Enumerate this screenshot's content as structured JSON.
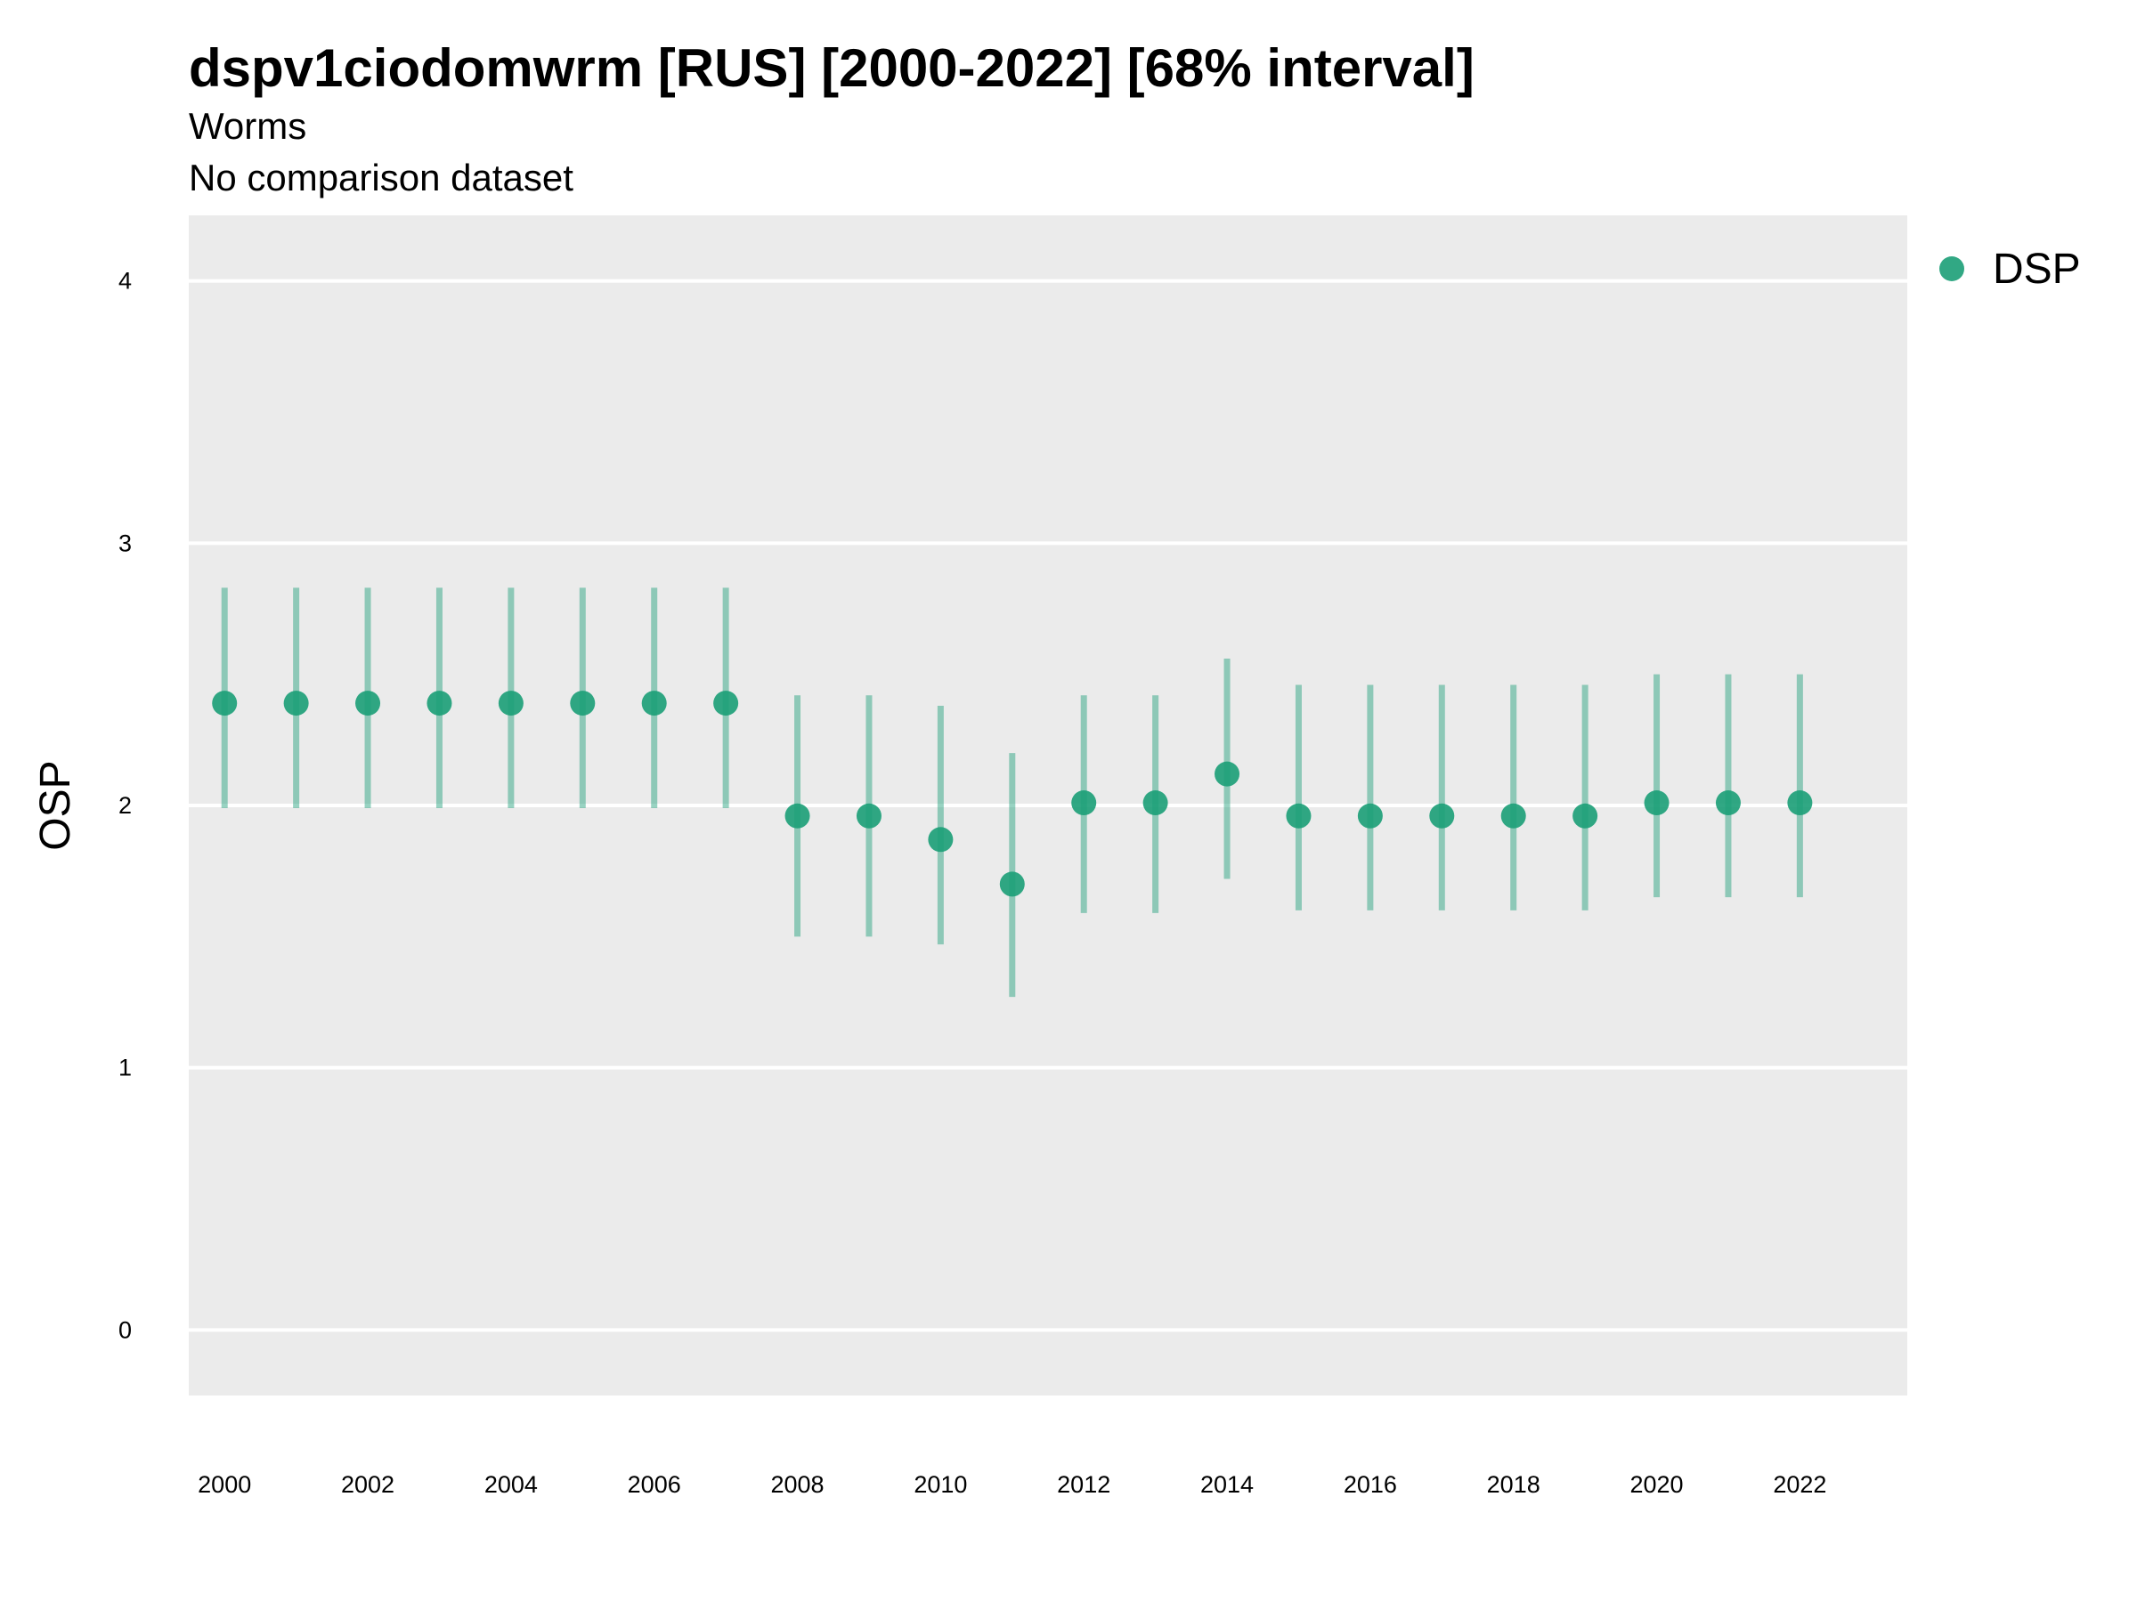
{
  "chart_data": {
    "type": "scatter",
    "title": "dspv1ciodomwrm [RUS] [2000-2022] [68% interval]",
    "subtitle": "Worms",
    "subtitle2": "No comparison dataset",
    "xlabel": "",
    "ylabel": "OSP",
    "ylim": [
      -0.25,
      4.25
    ],
    "xlim": [
      1999.5,
      2023.5
    ],
    "x_ticks": [
      "2000",
      "2002",
      "2004",
      "2006",
      "2008",
      "2010",
      "2012",
      "2014",
      "2016",
      "2018",
      "2020",
      "2022"
    ],
    "y_ticks": [
      "0",
      "1",
      "2",
      "3",
      "4"
    ],
    "grid": true,
    "legend_position": "right",
    "series": [
      {
        "name": "DSP",
        "color": "#1b9e77",
        "x": [
          2000,
          2001,
          2002,
          2003,
          2004,
          2005,
          2006,
          2007,
          2008,
          2009,
          2010,
          2011,
          2012,
          2013,
          2014,
          2015,
          2016,
          2017,
          2018,
          2019,
          2020,
          2021,
          2022
        ],
        "y": [
          2.39,
          2.39,
          2.39,
          2.39,
          2.39,
          2.39,
          2.39,
          2.39,
          1.96,
          1.96,
          1.87,
          1.7,
          2.01,
          2.01,
          2.12,
          1.96,
          1.96,
          1.96,
          1.96,
          1.96,
          2.01,
          2.01,
          2.01
        ],
        "lower": [
          1.99,
          1.99,
          1.99,
          1.99,
          1.99,
          1.99,
          1.99,
          1.99,
          1.5,
          1.5,
          1.47,
          1.27,
          1.59,
          1.59,
          1.72,
          1.6,
          1.6,
          1.6,
          1.6,
          1.6,
          1.65,
          1.65,
          1.65
        ],
        "upper": [
          2.83,
          2.83,
          2.83,
          2.83,
          2.83,
          2.83,
          2.83,
          2.83,
          2.42,
          2.42,
          2.38,
          2.2,
          2.42,
          2.42,
          2.56,
          2.46,
          2.46,
          2.46,
          2.46,
          2.46,
          2.5,
          2.5,
          2.5
        ]
      }
    ]
  }
}
